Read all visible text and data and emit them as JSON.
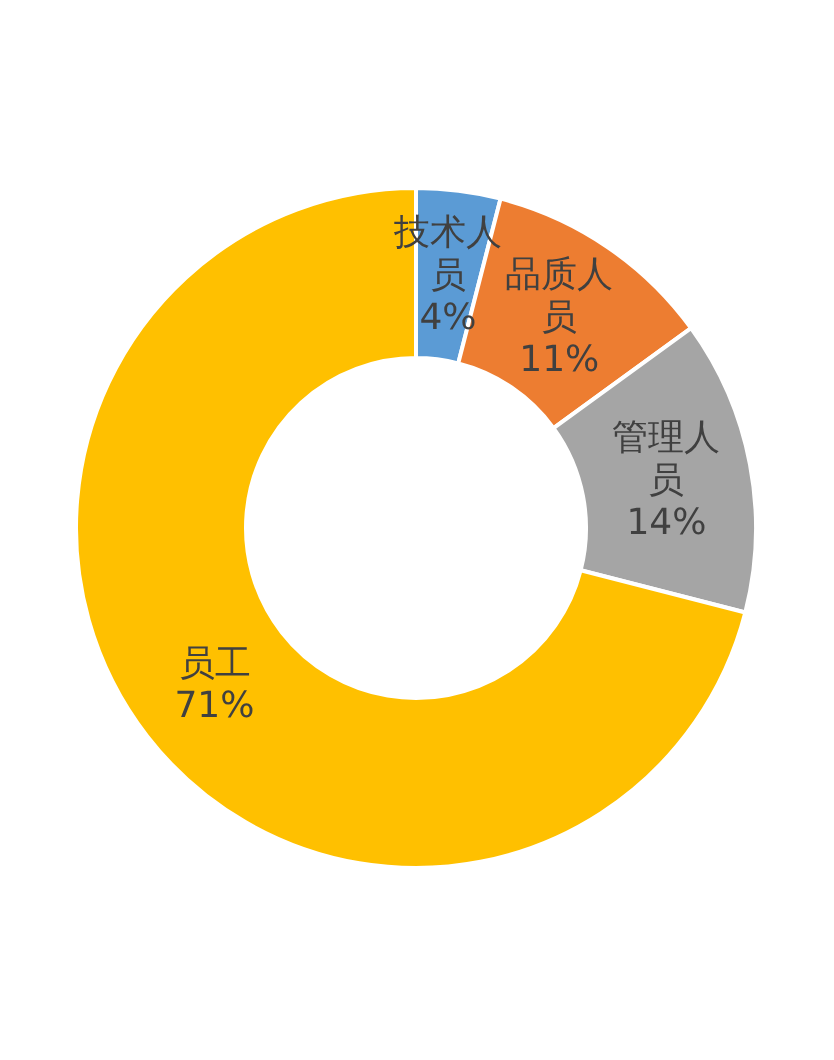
{
  "chart_data": {
    "type": "donut",
    "categories": [
      "技术人员",
      "品质人员",
      "管理人员",
      "员工"
    ],
    "values": [
      4,
      11,
      14,
      71
    ],
    "value_labels": [
      "4%",
      "11%",
      "14%",
      "71%"
    ],
    "colors": [
      "#5b9bd5",
      "#ed7d31",
      "#a5a5a5",
      "#ffc000"
    ]
  }
}
